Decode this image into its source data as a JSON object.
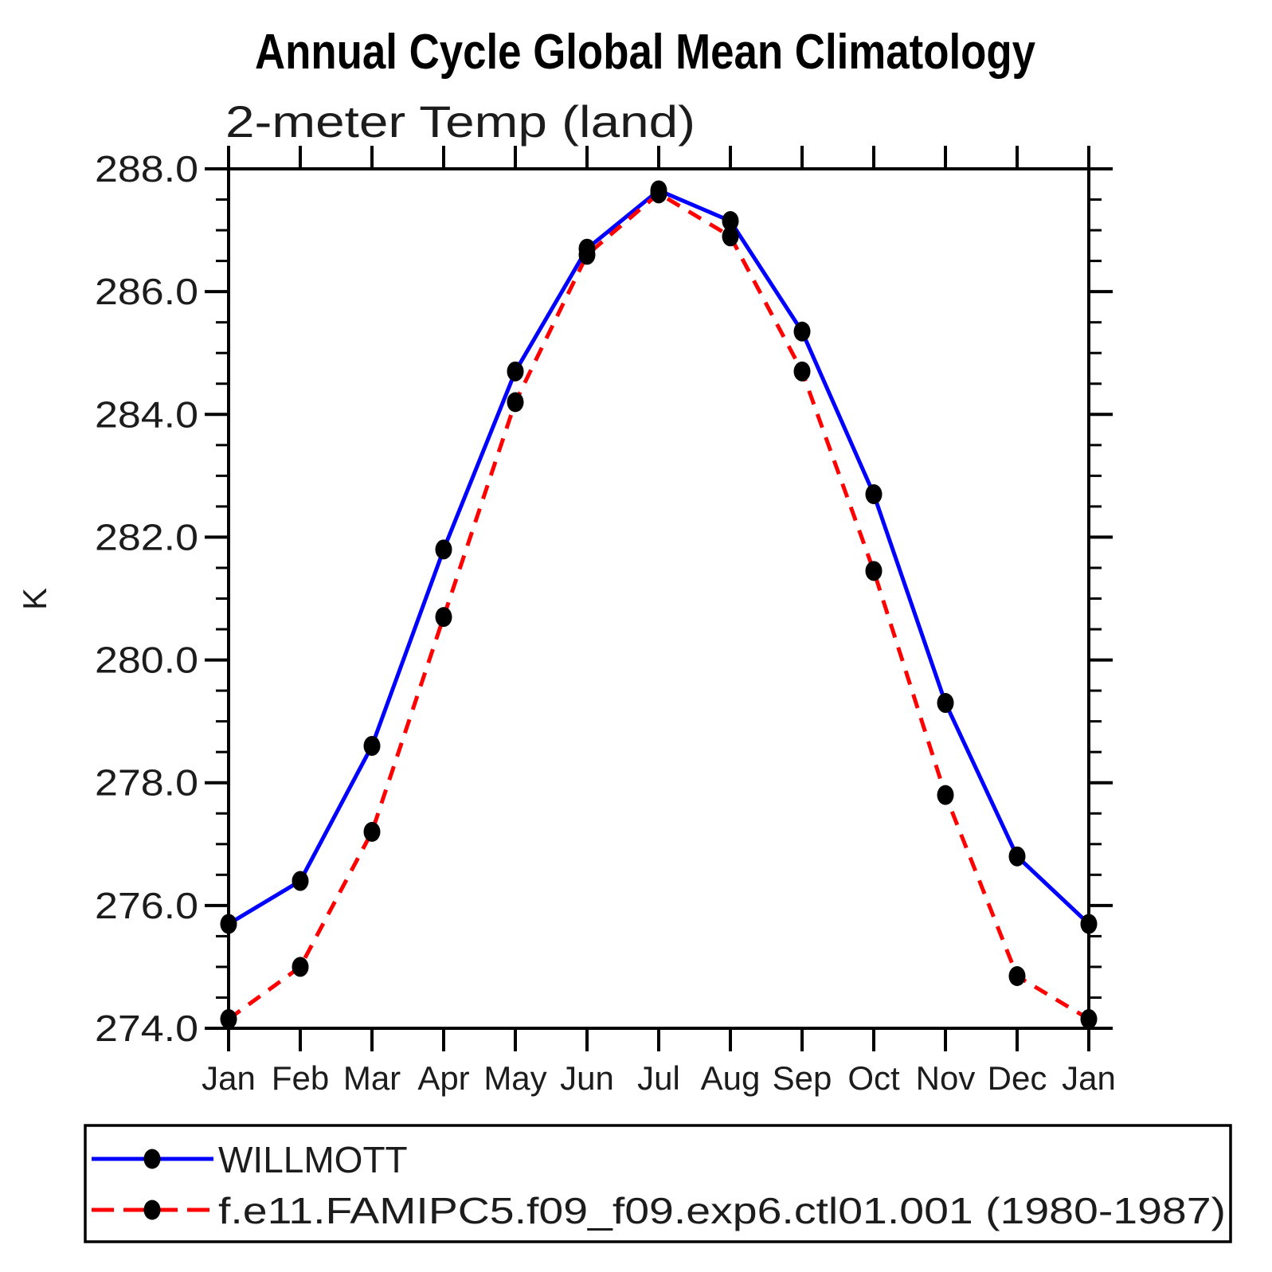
{
  "header": {
    "title": "Annual Cycle Global Mean Climatology",
    "subtitle": "2-meter Temp (land)"
  },
  "chart_data": {
    "type": "line",
    "title": "Annual Cycle Global Mean Climatology",
    "subtitle": "2-meter Temp (land)",
    "xlabel": "",
    "ylabel": "K",
    "categories": [
      "Jan",
      "Feb",
      "Mar",
      "Apr",
      "May",
      "Jun",
      "Jul",
      "Aug",
      "Sep",
      "Oct",
      "Nov",
      "Dec",
      "Jan"
    ],
    "ylim": [
      274.0,
      288.0
    ],
    "ytick_major_interval": 2.0,
    "ytick_minor_interval": 0.5,
    "yticks": [
      {
        "value": 274.0,
        "label": "274.0"
      },
      {
        "value": 276.0,
        "label": "276.0"
      },
      {
        "value": 278.0,
        "label": "278.0"
      },
      {
        "value": 280.0,
        "label": "280.0"
      },
      {
        "value": 282.0,
        "label": "282.0"
      },
      {
        "value": 284.0,
        "label": "284.0"
      },
      {
        "value": 286.0,
        "label": "286.0"
      },
      {
        "value": 288.0,
        "label": "288.0"
      }
    ],
    "grid": false,
    "legend_position": "bottom",
    "axis_color": "#000000",
    "marker_shape": "filled-circle",
    "series": [
      {
        "name": "WILLMOTT",
        "color": "#0000ff",
        "style": "solid",
        "marker_color": "#000000",
        "values": [
          275.7,
          276.4,
          278.6,
          281.8,
          284.7,
          286.7,
          287.65,
          287.15,
          285.35,
          282.7,
          279.3,
          276.8,
          275.7
        ]
      },
      {
        "name": "f.e11.FAMIPC5.f09_f09.exp6.ctl01.001 (1980-1987)",
        "color": "#ff0000",
        "style": "dashed",
        "marker_color": "#000000",
        "values": [
          274.15,
          275.0,
          277.2,
          280.7,
          284.2,
          286.6,
          287.6,
          286.9,
          284.7,
          281.45,
          277.8,
          274.85,
          274.15
        ]
      }
    ]
  }
}
